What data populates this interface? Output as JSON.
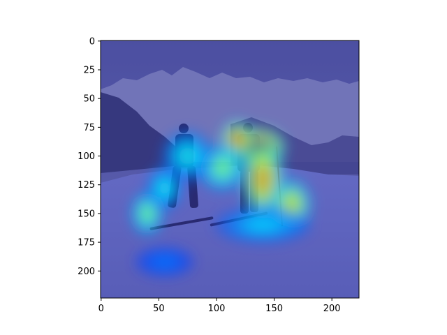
{
  "chart_data": {
    "type": "heatmap",
    "title": "",
    "xlabel": "",
    "ylabel": "",
    "xlim": [
      -0.5,
      223.5
    ],
    "ylim": [
      223.5,
      -0.5
    ],
    "x_ticks": [
      0,
      50,
      100,
      150,
      200
    ],
    "y_ticks": [
      0,
      25,
      50,
      75,
      100,
      125,
      150,
      175,
      200
    ],
    "image_width": 224,
    "image_height": 224,
    "background_scene": "two skiers standing on snowy slope with mountain range behind",
    "colormap": "jet",
    "overlay_alpha": 0.5,
    "hotspots": [
      {
        "x": 135,
        "y": 92,
        "intensity": 1.0,
        "sx": 16,
        "sy": 11
      },
      {
        "x": 118,
        "y": 85,
        "intensity": 0.8,
        "sx": 9,
        "sy": 10
      },
      {
        "x": 140,
        "y": 120,
        "intensity": 0.72,
        "sx": 12,
        "sy": 22
      },
      {
        "x": 165,
        "y": 142,
        "intensity": 0.6,
        "sx": 11,
        "sy": 14
      },
      {
        "x": 105,
        "y": 110,
        "intensity": 0.45,
        "sx": 13,
        "sy": 13
      },
      {
        "x": 40,
        "y": 150,
        "intensity": 0.45,
        "sx": 9,
        "sy": 12
      },
      {
        "x": 75,
        "y": 100,
        "intensity": 0.3,
        "sx": 14,
        "sy": 14
      },
      {
        "x": 55,
        "y": 128,
        "intensity": 0.3,
        "sx": 10,
        "sy": 12
      },
      {
        "x": 140,
        "y": 160,
        "intensity": 0.25,
        "sx": 26,
        "sy": 10
      },
      {
        "x": 55,
        "y": 192,
        "intensity": 0.12,
        "sx": 16,
        "sy": 8
      }
    ],
    "colors": {
      "sky": "#6b71b4",
      "overlay_base": "#25258f",
      "snow": "#6f78cc",
      "mountain_dark": "#3b3d72",
      "mountain_light": "#9a9ccf"
    }
  }
}
